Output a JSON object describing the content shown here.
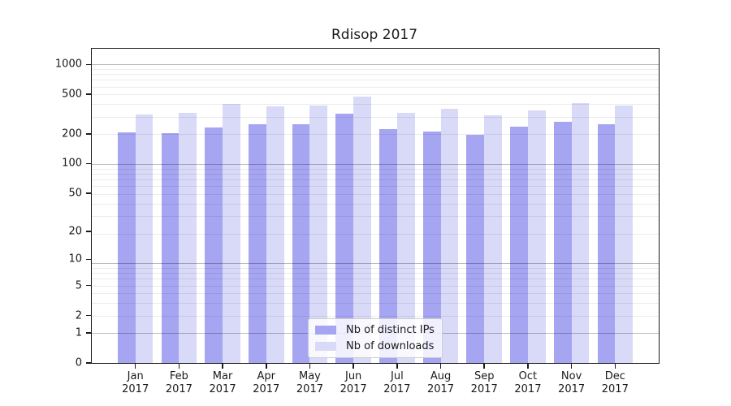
{
  "chart_data": {
    "type": "bar",
    "title": "Rdisop 2017",
    "categories": [
      "Jan",
      "Feb",
      "Mar",
      "Apr",
      "May",
      "Jun",
      "Jul",
      "Aug",
      "Sep",
      "Oct",
      "Nov",
      "Dec"
    ],
    "year": "2017",
    "series": [
      {
        "name": "Nb of distinct IPs",
        "color": "#a5a5f2",
        "values": [
          208,
          205,
          233,
          248,
          252,
          318,
          225,
          209,
          196,
          237,
          264,
          250
        ]
      },
      {
        "name": "Nb of downloads",
        "color": "#d9d9f8",
        "values": [
          314,
          325,
          398,
          378,
          383,
          477,
          326,
          359,
          305,
          346,
          405,
          386
        ]
      }
    ],
    "xlabel": "",
    "ylabel": "",
    "yticks": [
      0,
      1,
      2,
      5,
      10,
      20,
      50,
      100,
      200,
      500,
      1000
    ],
    "ylim": [
      0,
      1440
    ],
    "scale": "log1p",
    "grid": true,
    "legend_position": "lower center"
  }
}
